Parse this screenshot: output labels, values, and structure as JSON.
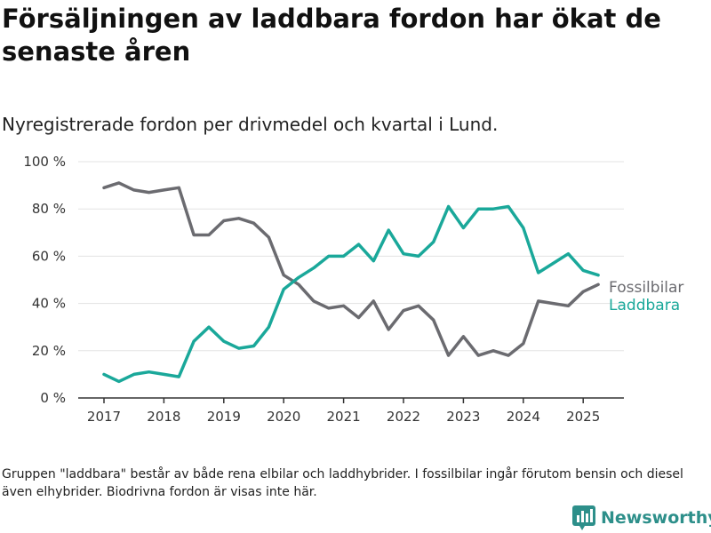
{
  "title": "Försäljningen av laddbara fordon har ökat de senaste åren",
  "subtitle": "Nyregistrerade fordon per drivmedel och kvartal i Lund.",
  "footnote": "Gruppen \"laddbara\" består av både rena elbilar och laddhybrider. I fossilbilar ingår förutom bensin och diesel även elhybrider. Biodrivna fordon är visas inte här.",
  "brand": {
    "name": "Newsworthy",
    "icon": "bar-chart-logo-icon",
    "color": "#2d8f8a"
  },
  "chart_data": {
    "type": "line",
    "x_ticks": [
      "2017",
      "2018",
      "2019",
      "2020",
      "2021",
      "2022",
      "2023",
      "2024",
      "2025"
    ],
    "y_ticks": [
      "0 %",
      "20 %",
      "40 %",
      "60 %",
      "80 %",
      "100 %"
    ],
    "ylim": [
      0,
      100
    ],
    "grid": true,
    "x": [
      "2017Q1",
      "2017Q2",
      "2017Q3",
      "2017Q4",
      "2018Q1",
      "2018Q2",
      "2018Q3",
      "2018Q4",
      "2019Q1",
      "2019Q2",
      "2019Q3",
      "2019Q4",
      "2020Q1",
      "2020Q2",
      "2020Q3",
      "2020Q4",
      "2021Q1",
      "2021Q2",
      "2021Q3",
      "2021Q4",
      "2022Q1",
      "2022Q2",
      "2022Q3",
      "2022Q4",
      "2023Q1",
      "2023Q2",
      "2023Q3",
      "2023Q4",
      "2024Q1",
      "2024Q2",
      "2024Q3",
      "2024Q4",
      "2025Q1",
      "2025Q2"
    ],
    "series": [
      {
        "name": "Fossilbilar",
        "color": "#6b6b70",
        "values": [
          89,
          91,
          88,
          87,
          88,
          89,
          69,
          69,
          75,
          76,
          74,
          68,
          52,
          48,
          41,
          38,
          39,
          34,
          41,
          29,
          37,
          39,
          33,
          18,
          26,
          18,
          20,
          18,
          23,
          41,
          40,
          39,
          45,
          48
        ]
      },
      {
        "name": "Laddbara",
        "color": "#1aa89a",
        "values": [
          10,
          7,
          10,
          11,
          10,
          9,
          24,
          30,
          24,
          21,
          22,
          30,
          46,
          51,
          55,
          60,
          60,
          65,
          58,
          71,
          61,
          60,
          66,
          81,
          72,
          80,
          80,
          81,
          72,
          53,
          57,
          61,
          54,
          52
        ]
      }
    ]
  }
}
